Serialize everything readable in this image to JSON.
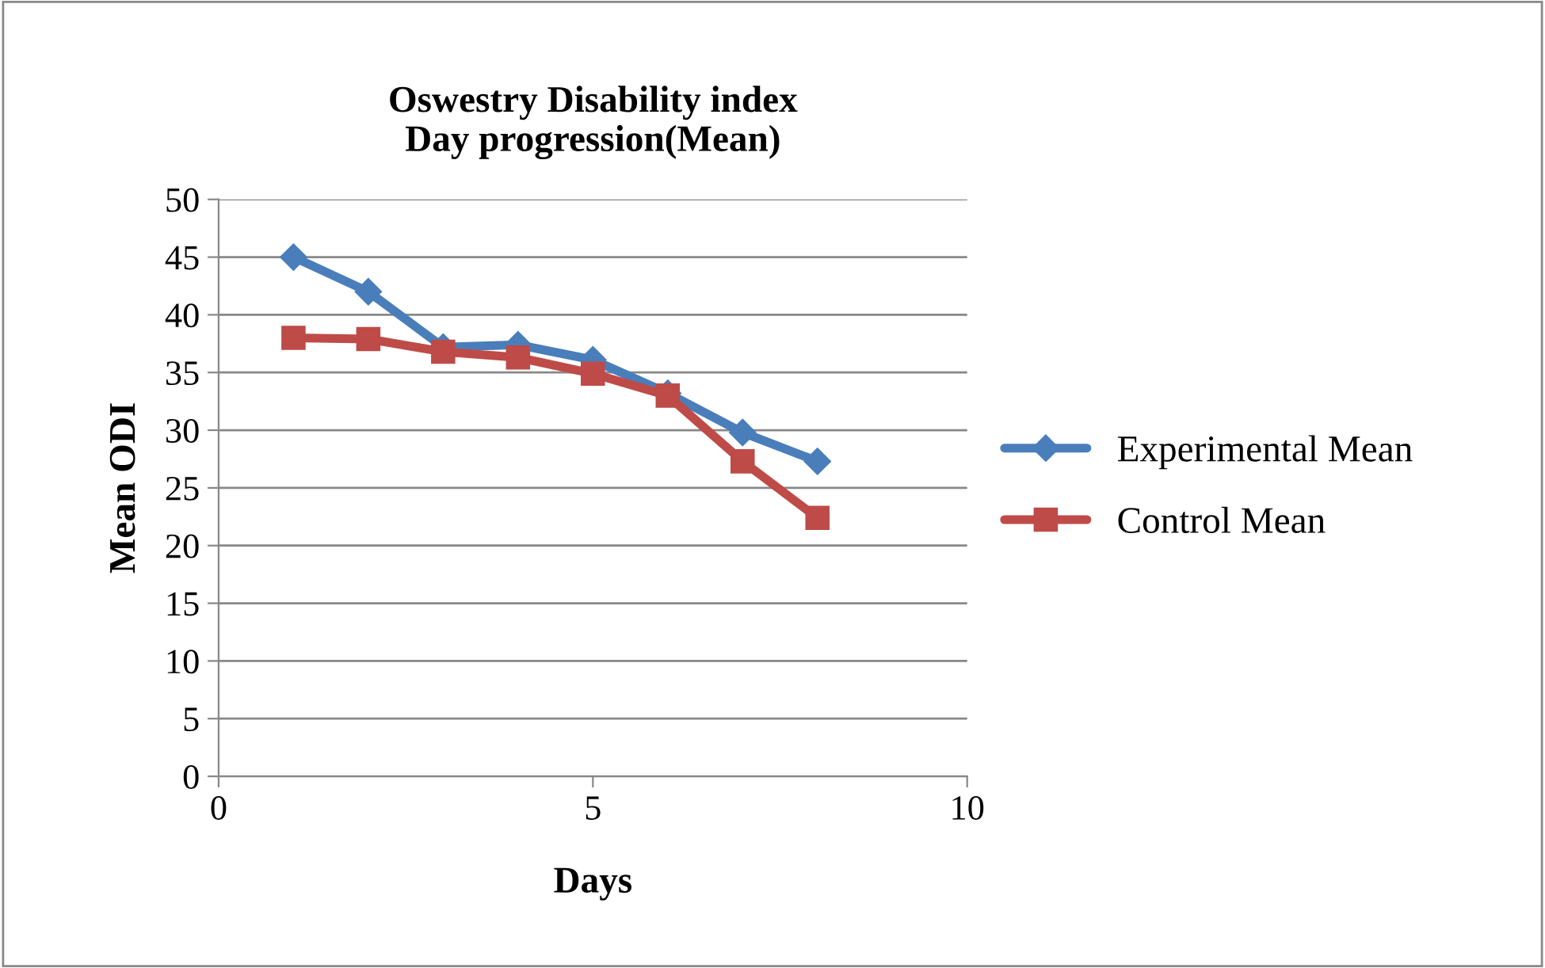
{
  "chart_data": {
    "type": "line",
    "title": "Oswestry Disability index\nDay progression(Mean)",
    "xlabel": "Days",
    "ylabel": "Mean ODI",
    "x": [
      1,
      2,
      3,
      4,
      5,
      6,
      7,
      8
    ],
    "series": [
      {
        "name": "Experimental Mean",
        "color": "#4a7ebb",
        "marker": "diamond",
        "values": [
          45,
          42,
          37.2,
          37.4,
          36.1,
          33.2,
          29.8,
          27.3
        ]
      },
      {
        "name": "Control Mean",
        "color": "#be4b48",
        "marker": "square",
        "values": [
          38,
          37.9,
          36.8,
          36.3,
          34.9,
          33,
          27.3,
          22.4
        ]
      }
    ],
    "xlim": [
      0,
      10
    ],
    "xticks": [
      0,
      5,
      10
    ],
    "ylim": [
      0,
      50
    ],
    "yticks": [
      0,
      5,
      10,
      15,
      20,
      25,
      30,
      35,
      40,
      45,
      50
    ],
    "grid": "y",
    "legend": "right",
    "line_style": "solid"
  }
}
